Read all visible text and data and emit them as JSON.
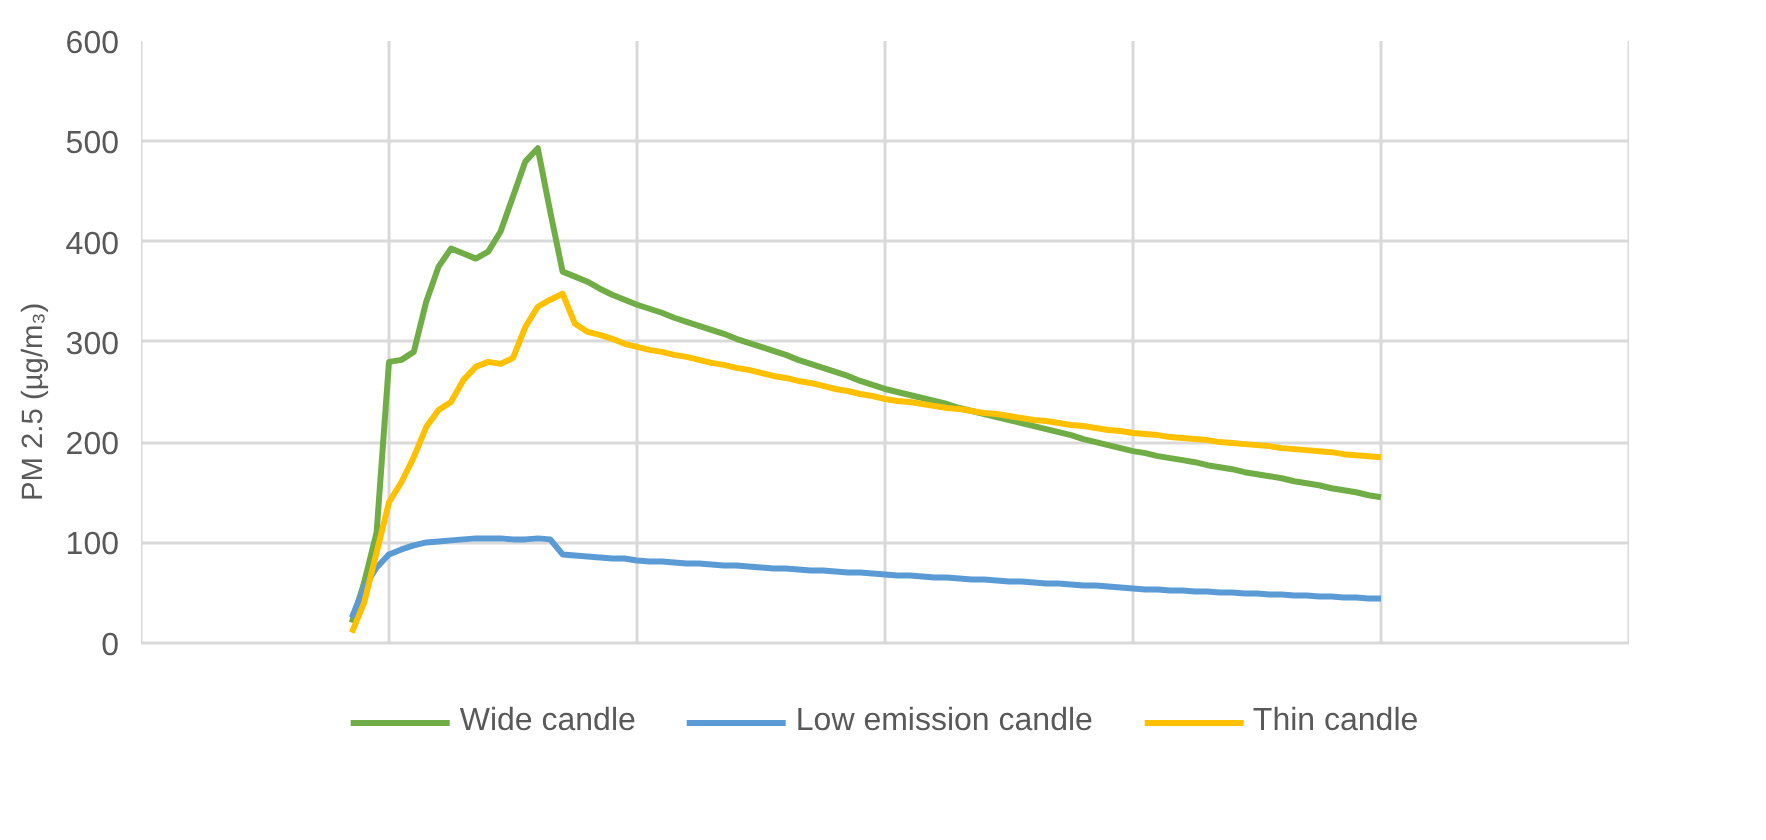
{
  "chart_data": {
    "type": "line",
    "ylabel": "PM 2.5 (µg/m₃)",
    "categories": [
      null,
      null,
      null,
      null,
      null,
      null,
      null,
      null,
      null,
      null,
      null,
      null,
      null,
      null,
      null,
      null,
      null,
      null,
      null,
      null,
      null,
      null,
      null,
      null,
      null,
      null,
      null,
      null,
      null,
      null,
      null,
      null,
      null,
      null,
      null,
      null,
      null,
      null,
      null,
      null,
      null,
      null,
      null,
      null,
      null,
      null,
      null,
      null,
      null,
      null,
      null,
      null,
      null,
      null,
      null,
      null,
      null,
      null,
      null,
      null,
      null,
      null,
      null,
      null,
      null,
      null,
      null,
      null,
      null,
      null,
      null,
      null,
      null,
      null,
      null,
      null,
      null,
      null,
      null,
      null,
      null,
      null,
      null,
      null,
      null,
      null,
      null,
      null,
      null,
      null,
      null,
      null,
      null,
      null,
      null,
      null,
      null,
      null,
      null,
      null,
      null,
      null,
      null,
      null,
      null,
      null,
      null,
      null,
      null,
      null,
      null,
      null,
      null,
      null,
      null,
      null,
      null,
      null,
      null,
      null,
      null
    ],
    "series": [
      {
        "name": "Wide candle",
        "color": "#70ad47",
        "values": [
          null,
          null,
          null,
          null,
          null,
          null,
          null,
          null,
          null,
          null,
          null,
          null,
          null,
          null,
          null,
          null,
          null,
          20,
          60,
          110,
          280,
          282,
          290,
          340,
          375,
          393,
          388,
          383,
          390,
          410,
          445,
          480,
          493,
          430,
          370,
          365,
          360,
          353,
          347,
          342,
          337,
          333,
          329,
          324,
          320,
          316,
          312,
          308,
          303,
          299,
          295,
          291,
          287,
          282,
          278,
          274,
          270,
          266,
          261,
          257,
          253,
          250,
          247,
          244,
          241,
          238,
          234,
          231,
          228,
          225,
          222,
          219,
          216,
          213,
          210,
          207,
          203,
          200,
          197,
          194,
          191,
          189,
          186,
          184,
          182,
          180,
          177,
          175,
          173,
          170,
          168,
          166,
          164,
          161,
          159,
          157,
          154,
          152,
          150,
          147,
          145,
          null,
          null,
          null,
          null,
          null,
          null,
          null,
          null,
          null,
          null,
          null,
          null,
          null,
          null,
          null,
          null,
          null,
          null,
          null,
          null
        ]
      },
      {
        "name": "Low emission candle",
        "color": "#5b9bd5",
        "values": [
          null,
          null,
          null,
          null,
          null,
          null,
          null,
          null,
          null,
          null,
          null,
          null,
          null,
          null,
          null,
          null,
          null,
          25,
          55,
          75,
          88,
          93,
          97,
          100,
          101,
          102,
          103,
          104,
          104,
          104,
          103,
          103,
          104,
          103,
          88,
          87,
          86,
          85,
          84,
          84,
          82,
          81,
          81,
          80,
          79,
          79,
          78,
          77,
          77,
          76,
          75,
          74,
          74,
          73,
          72,
          72,
          71,
          70,
          70,
          69,
          68,
          67,
          67,
          66,
          65,
          65,
          64,
          63,
          63,
          62,
          61,
          61,
          60,
          59,
          59,
          58,
          57,
          57,
          56,
          55,
          54,
          53,
          53,
          52,
          52,
          51,
          51,
          50,
          50,
          49,
          49,
          48,
          48,
          47,
          47,
          46,
          46,
          45,
          45,
          44,
          44,
          null,
          null,
          null,
          null,
          null,
          null,
          null,
          null,
          null,
          null,
          null,
          null,
          null,
          null,
          null,
          null,
          null,
          null,
          null,
          null
        ]
      },
      {
        "name": "Thin candle",
        "color": "#ffc000",
        "values": [
          null,
          null,
          null,
          null,
          null,
          null,
          null,
          null,
          null,
          null,
          null,
          null,
          null,
          null,
          null,
          null,
          null,
          10,
          40,
          90,
          140,
          160,
          185,
          215,
          232,
          240,
          262,
          275,
          280,
          278,
          284,
          315,
          335,
          342,
          348,
          318,
          310,
          307,
          303,
          298,
          295,
          292,
          290,
          287,
          285,
          282,
          279,
          277,
          274,
          272,
          269,
          266,
          264,
          261,
          259,
          256,
          253,
          251,
          248,
          246,
          243,
          241,
          240,
          238,
          236,
          234,
          233,
          231,
          229,
          228,
          226,
          224,
          222,
          221,
          219,
          217,
          216,
          214,
          212,
          211,
          209,
          208,
          207,
          205,
          204,
          203,
          202,
          200,
          199,
          198,
          197,
          196,
          194,
          193,
          192,
          191,
          190,
          188,
          187,
          186,
          185,
          null,
          null,
          null,
          null,
          null,
          null,
          null,
          null,
          null,
          null,
          null,
          null,
          null,
          null,
          null,
          null,
          null,
          null,
          null,
          null
        ]
      }
    ],
    "ylim": [
      0,
      600
    ],
    "yticks": [
      0,
      100,
      200,
      300,
      400,
      500,
      600
    ],
    "tick_labels": "y",
    "grid": true,
    "legend": "bottom",
    "marker": "none",
    "line_style": "solid"
  }
}
